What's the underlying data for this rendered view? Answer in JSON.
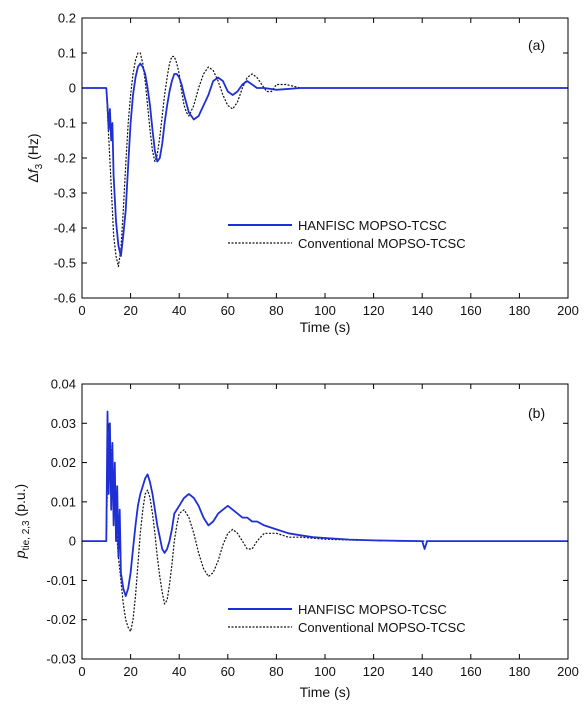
{
  "chart_data": [
    {
      "type": "line",
      "panel_label": "(a)",
      "xlabel": "Time (s)",
      "ylabel": "Δf3 (Hz)",
      "ylabel_parts": {
        "delta": "Δ",
        "var": "f",
        "sub": "3",
        "unit": " (Hz)"
      },
      "xlim": [
        0,
        200
      ],
      "ylim": [
        -0.6,
        0.2
      ],
      "x_ticks": [
        0,
        20,
        40,
        60,
        80,
        100,
        120,
        140,
        160,
        180,
        200
      ],
      "y_ticks": [
        -0.6,
        -0.5,
        -0.4,
        -0.3,
        -0.2,
        -0.1,
        0,
        0.1,
        0.2
      ],
      "y_tick_labels": [
        "-0.6",
        "-0.5",
        "-0.4",
        "-0.3",
        "-0.2",
        "-0.1",
        "0",
        "0.1",
        "0.2"
      ],
      "legend_position": "lower-right",
      "series": [
        {
          "name": "HANFISC MOPSO-TCSC",
          "color": "#1f2fd6",
          "style": "solid",
          "x": [
            0,
            10,
            10.5,
            11,
            11.5,
            12,
            12.5,
            13,
            14,
            15,
            16,
            17,
            18,
            19,
            20,
            21,
            22,
            23,
            24,
            25,
            26,
            27,
            28,
            29,
            30,
            31,
            32,
            33,
            34,
            35,
            36,
            37,
            38,
            39,
            40,
            41,
            42,
            44,
            46,
            48,
            50,
            52,
            54,
            56,
            58,
            60,
            62,
            64,
            66,
            68,
            70,
            72,
            75,
            80,
            90,
            100,
            120,
            140,
            160,
            180,
            200
          ],
          "y": [
            0,
            0,
            -0.05,
            -0.12,
            -0.06,
            -0.15,
            -0.1,
            -0.25,
            -0.38,
            -0.45,
            -0.48,
            -0.42,
            -0.35,
            -0.22,
            -0.1,
            -0.02,
            0.03,
            0.06,
            0.07,
            0.06,
            0.04,
            0.0,
            -0.05,
            -0.12,
            -0.18,
            -0.21,
            -0.2,
            -0.16,
            -0.1,
            -0.05,
            -0.01,
            0.02,
            0.04,
            0.04,
            0.03,
            0.01,
            -0.02,
            -0.07,
            -0.09,
            -0.08,
            -0.05,
            -0.02,
            0.02,
            0.03,
            0.02,
            -0.01,
            -0.02,
            -0.01,
            0.01,
            0.02,
            0.01,
            0.0,
            0.0,
            -0.005,
            0.0,
            0.0,
            0.0,
            0.0,
            0.0,
            0.0,
            0.0
          ]
        },
        {
          "name": "Conventional MOPSO-TCSC",
          "color": "#111111",
          "style": "dotted",
          "x": [
            0,
            10,
            11,
            12,
            13,
            14,
            15,
            16,
            17,
            18,
            19,
            20,
            21,
            22,
            23,
            24,
            25,
            26,
            27,
            28,
            29,
            30,
            31,
            32,
            33,
            34,
            35,
            36,
            37,
            38,
            39,
            40,
            41,
            42,
            43,
            44,
            46,
            48,
            50,
            52,
            54,
            56,
            58,
            60,
            62,
            64,
            66,
            68,
            70,
            72,
            74,
            76,
            78,
            80,
            84,
            90,
            100,
            120,
            140,
            160,
            180,
            200
          ],
          "y": [
            0,
            0,
            -0.14,
            -0.28,
            -0.42,
            -0.48,
            -0.51,
            -0.46,
            -0.35,
            -0.22,
            -0.1,
            -0.02,
            0.04,
            0.08,
            0.1,
            0.1,
            0.07,
            0.02,
            -0.05,
            -0.12,
            -0.18,
            -0.21,
            -0.19,
            -0.14,
            -0.08,
            -0.02,
            0.03,
            0.07,
            0.09,
            0.09,
            0.07,
            0.04,
            -0.01,
            -0.05,
            -0.07,
            -0.08,
            -0.05,
            0.0,
            0.04,
            0.06,
            0.05,
            0.02,
            -0.02,
            -0.05,
            -0.06,
            -0.04,
            0.0,
            0.03,
            0.04,
            0.03,
            0.01,
            -0.01,
            -0.01,
            0.01,
            0.01,
            0.0,
            0.0,
            0.0,
            0.0,
            0.0,
            0.0,
            0.0
          ]
        }
      ]
    },
    {
      "type": "line",
      "panel_label": "(b)",
      "xlabel": "Time (s)",
      "ylabel": "ptie, 2,3 (p.u.)",
      "ylabel_parts": {
        "var": "p",
        "sub": "tie, 2,3",
        "unit": " (p.u.)"
      },
      "xlim": [
        0,
        200
      ],
      "ylim": [
        -0.03,
        0.04
      ],
      "x_ticks": [
        0,
        20,
        40,
        60,
        80,
        100,
        120,
        140,
        160,
        180,
        200
      ],
      "y_ticks": [
        -0.03,
        -0.02,
        -0.01,
        0,
        0.01,
        0.02,
        0.03,
        0.04
      ],
      "y_tick_labels": [
        "-0.03",
        "-0.02",
        "-0.01",
        "0",
        "0.01",
        "0.02",
        "0.03",
        "0.04"
      ],
      "legend_position": "lower-right",
      "series": [
        {
          "name": "HANFISC MOPSO-TCSC",
          "color": "#1f2fd6",
          "style": "solid",
          "x": [
            0,
            10,
            10.5,
            11,
            11.5,
            12,
            12.5,
            13,
            13.5,
            14,
            14.5,
            15,
            15.5,
            16,
            17,
            18,
            19,
            20,
            21,
            22,
            23,
            24,
            25,
            26,
            27,
            28,
            29,
            30,
            31,
            32,
            33,
            34,
            35,
            36,
            37,
            38,
            40,
            42,
            44,
            46,
            48,
            50,
            52,
            54,
            56,
            58,
            60,
            62,
            64,
            66,
            68,
            70,
            72,
            75,
            80,
            85,
            90,
            95,
            100,
            110,
            120,
            130,
            140,
            141,
            142,
            150,
            160,
            180,
            200
          ],
          "y": [
            0,
            0,
            0.033,
            0.012,
            0.03,
            0.008,
            0.025,
            0.004,
            0.02,
            0.0,
            0.014,
            -0.004,
            0.008,
            -0.008,
            -0.012,
            -0.014,
            -0.012,
            -0.008,
            -0.002,
            0.004,
            0.009,
            0.012,
            0.014,
            0.016,
            0.017,
            0.015,
            0.012,
            0.008,
            0.004,
            0.001,
            -0.002,
            -0.003,
            -0.002,
            0.0,
            0.003,
            0.007,
            0.009,
            0.011,
            0.012,
            0.011,
            0.009,
            0.006,
            0.004,
            0.005,
            0.007,
            0.008,
            0.009,
            0.008,
            0.007,
            0.006,
            0.006,
            0.005,
            0.005,
            0.004,
            0.003,
            0.002,
            0.0015,
            0.001,
            0.0008,
            0.0004,
            0.0002,
            0.0001,
            0.0,
            -0.002,
            0.0,
            0.0,
            0.0,
            0.0,
            0.0
          ]
        },
        {
          "name": "Conventional MOPSO-TCSC",
          "color": "#111111",
          "style": "dotted",
          "x": [
            0,
            10,
            11,
            12,
            13,
            14,
            15,
            16,
            17,
            18,
            19,
            20,
            21,
            22,
            23,
            24,
            25,
            26,
            27,
            28,
            29,
            30,
            31,
            32,
            33,
            34,
            35,
            36,
            37,
            38,
            39,
            40,
            42,
            44,
            46,
            48,
            50,
            52,
            54,
            56,
            58,
            60,
            62,
            64,
            66,
            68,
            70,
            72,
            75,
            80,
            85,
            90,
            100,
            110,
            120,
            140,
            160,
            180,
            200
          ],
          "y": [
            0,
            0,
            0.03,
            0.022,
            0.012,
            0.004,
            -0.004,
            -0.01,
            -0.016,
            -0.02,
            -0.022,
            -0.023,
            -0.02,
            -0.014,
            -0.006,
            0.002,
            0.008,
            0.012,
            0.013,
            0.011,
            0.007,
            0.002,
            -0.004,
            -0.009,
            -0.013,
            -0.016,
            -0.015,
            -0.011,
            -0.006,
            0.0,
            0.004,
            0.007,
            0.008,
            0.006,
            0.002,
            -0.003,
            -0.007,
            -0.009,
            -0.008,
            -0.005,
            -0.001,
            0.002,
            0.003,
            0.002,
            0.0,
            -0.002,
            -0.002,
            0.0,
            0.002,
            0.002,
            0.001,
            0.001,
            0.0005,
            0.0003,
            0.0002,
            0.0,
            0.0,
            0.0,
            0.0
          ]
        }
      ]
    }
  ]
}
